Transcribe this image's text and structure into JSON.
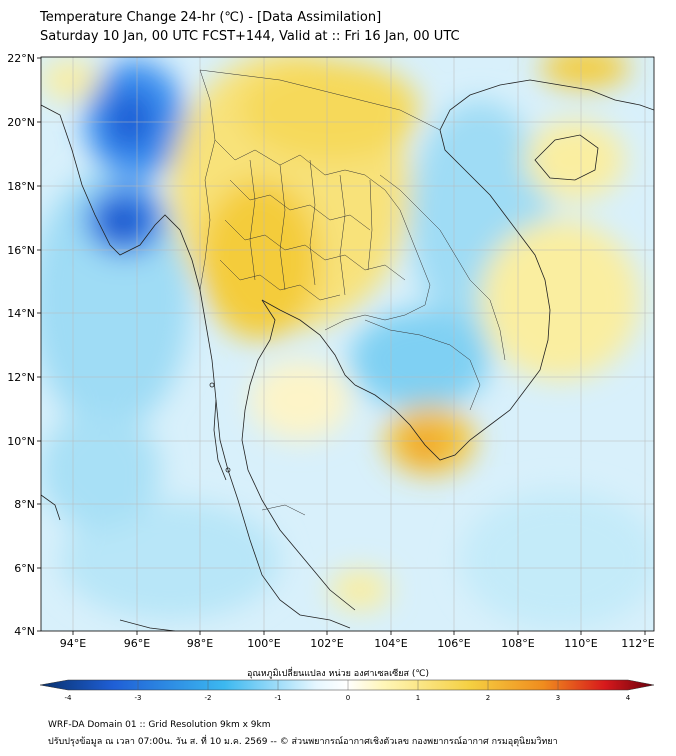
{
  "title": {
    "line1": "Temperature Change 24-hr (℃) - [Data Assimilation]",
    "line2": "Saturday 10 Jan, 00 UTC FCST+144, Valid at :: Fri 16 Jan, 00 UTC"
  },
  "map": {
    "lat_ticks": [
      "22°N",
      "20°N",
      "18°N",
      "16°N",
      "14°N",
      "12°N",
      "10°N",
      "8°N",
      "6°N",
      "4°N"
    ],
    "lon_ticks": [
      "94°E",
      "96°E",
      "98°E",
      "100°E",
      "102°E",
      "104°E",
      "106°E",
      "108°E",
      "110°E",
      "112°E"
    ]
  },
  "colorbar": {
    "label": "อุณหภูมิเปลี่ยนแปลง หน่วย องศาเซลเซียส (℃)",
    "ticks": [
      "-4",
      "-3",
      "-2",
      "-1",
      "0",
      "1",
      "2",
      "3",
      "4"
    ],
    "colors": {
      "deep_blue": "#08306b",
      "blue": "#1f5fd6",
      "light_blue": "#3cb8f0",
      "pale": "#e6f7ff",
      "white": "#ffffff",
      "pale_yellow": "#fff6b8",
      "yellow": "#f5d042",
      "orange": "#f08c1e",
      "red": "#d7191c",
      "dark_red": "#67000d"
    }
  },
  "footer": {
    "line1": "WRF-DA Domain 01 :: Grid Resolution 9km x 9km",
    "line2": "ปรับปรุงข้อมูล ณ เวลา 07:00น. วัน ส. ที่ 10 ม.ค. 2569 -- © ส่วนพยากรณ์อากาศเชิงตัวเลข กองพยากรณ์อากาศ กรมอุตุนิยมวิทยา"
  }
}
